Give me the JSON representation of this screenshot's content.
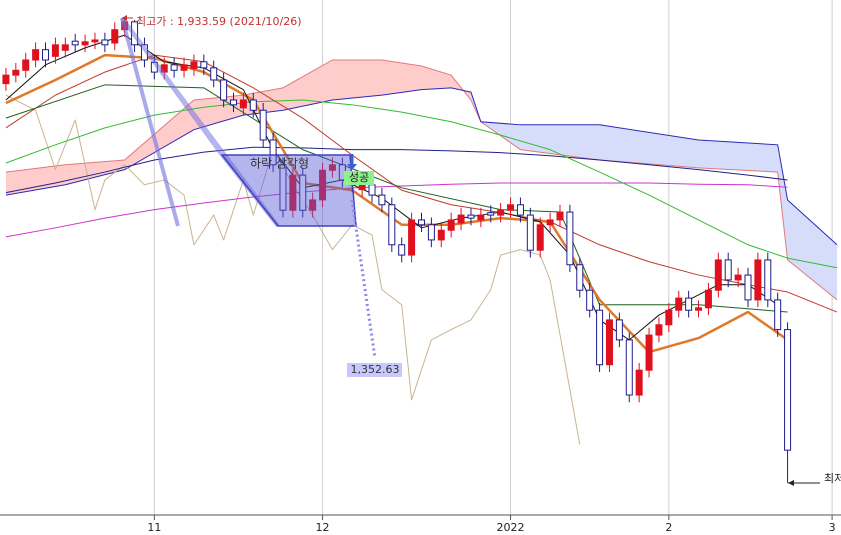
{
  "chart_data": {
    "type": "candlestick",
    "xlim": [
      -0.6,
      84.4
    ],
    "ylim": [
      1113,
      1963
    ],
    "grid": true,
    "xticks": [
      {
        "value": 15,
        "label": "11"
      },
      {
        "value": 32,
        "label": "12"
      },
      {
        "value": 51,
        "label": "2022"
      },
      {
        "value": 67,
        "label": "2"
      },
      {
        "value": 83.5,
        "label": "3"
      }
    ],
    "up_color": "#e0101e",
    "down_color": "#1c1c8c",
    "open": [
      1825,
      1839,
      1847,
      1864,
      1881,
      1870,
      1880,
      1895,
      1889,
      1894,
      1897,
      1892,
      1914,
      1927,
      1889,
      1860,
      1844,
      1856,
      1847,
      1850,
      1861,
      1851,
      1831,
      1798,
      1785,
      1798,
      1781,
      1732,
      1691,
      1616,
      1674,
      1616,
      1633,
      1682,
      1691,
      1666,
      1650,
      1658,
      1641,
      1625,
      1559,
      1542,
      1600,
      1592,
      1567,
      1583,
      1595,
      1608,
      1600,
      1612,
      1608,
      1616,
      1625,
      1608,
      1550,
      1592,
      1600,
      1613,
      1526,
      1484,
      1451,
      1361,
      1435,
      1402,
      1311,
      1352,
      1410,
      1427,
      1451,
      1471,
      1451,
      1455,
      1484,
      1534,
      1501,
      1509,
      1468,
      1534,
      1468,
      1419
    ],
    "high": [
      1851,
      1859,
      1876,
      1893,
      1893,
      1901,
      1901,
      1907,
      1906,
      1909,
      1909,
      1926,
      1934,
      1930,
      1901,
      1872,
      1868,
      1868,
      1868,
      1873,
      1873,
      1863,
      1843,
      1810,
      1810,
      1810,
      1793,
      1744,
      1703,
      1686,
      1686,
      1645,
      1694,
      1703,
      1703,
      1678,
      1670,
      1670,
      1653,
      1637,
      1571,
      1612,
      1612,
      1604,
      1595,
      1612,
      1620,
      1620,
      1620,
      1624,
      1628,
      1637,
      1637,
      1620,
      1604,
      1612,
      1625,
      1625,
      1538,
      1496,
      1463,
      1447,
      1447,
      1414,
      1364,
      1422,
      1439,
      1463,
      1483,
      1483,
      1467,
      1496,
      1546,
      1546,
      1521,
      1521,
      1546,
      1546,
      1480,
      1431
    ],
    "low": [
      1813,
      1827,
      1835,
      1852,
      1852,
      1858,
      1868,
      1877,
      1877,
      1882,
      1877,
      1880,
      1902,
      1877,
      1852,
      1832,
      1832,
      1835,
      1835,
      1838,
      1839,
      1819,
      1786,
      1778,
      1773,
      1769,
      1720,
      1679,
      1604,
      1604,
      1604,
      1604,
      1621,
      1670,
      1654,
      1646,
      1638,
      1629,
      1613,
      1547,
      1530,
      1530,
      1580,
      1555,
      1555,
      1571,
      1583,
      1591,
      1588,
      1596,
      1596,
      1604,
      1596,
      1538,
      1538,
      1580,
      1588,
      1514,
      1472,
      1439,
      1349,
      1349,
      1390,
      1299,
      1299,
      1340,
      1398,
      1415,
      1439,
      1439,
      1439,
      1443,
      1472,
      1489,
      1489,
      1456,
      1456,
      1456,
      1407,
      1166
    ],
    "close": [
      1839,
      1847,
      1864,
      1881,
      1864,
      1889,
      1889,
      1889,
      1894,
      1897,
      1889,
      1914,
      1927,
      1889,
      1864,
      1844,
      1856,
      1847,
      1856,
      1861,
      1851,
      1831,
      1798,
      1790,
      1798,
      1781,
      1732,
      1691,
      1616,
      1674,
      1616,
      1633,
      1682,
      1691,
      1666,
      1658,
      1658,
      1641,
      1625,
      1559,
      1542,
      1600,
      1592,
      1567,
      1583,
      1600,
      1608,
      1603,
      1608,
      1608,
      1616,
      1625,
      1608,
      1550,
      1592,
      1600,
      1613,
      1526,
      1484,
      1451,
      1361,
      1435,
      1402,
      1311,
      1352,
      1410,
      1427,
      1451,
      1471,
      1451,
      1455,
      1484,
      1534,
      1501,
      1509,
      1468,
      1534,
      1468,
      1419,
      1220
    ],
    "cloud": {
      "x": [
        0,
        6,
        12,
        19,
        24,
        28,
        33,
        38,
        42,
        45,
        47,
        48,
        52,
        60,
        70,
        78,
        79,
        84
      ],
      "a": [
        1679,
        1691,
        1699,
        1798,
        1806,
        1818,
        1864,
        1864,
        1854,
        1839,
        1798,
        1762,
        1716,
        1699,
        1686,
        1679,
        1534,
        1468
      ],
      "b": [
        1641,
        1658,
        1683,
        1749,
        1773,
        1781,
        1798,
        1806,
        1815,
        1818,
        1811,
        1762,
        1757,
        1757,
        1732,
        1724,
        1633,
        1559
      ],
      "a_color": "#ffcccc",
      "b_color": "#d6ddfb",
      "a_line": "#e07a7a",
      "b_line": "#2a2ab8"
    },
    "series": [
      {
        "color": "#c9b48f",
        "width": 1,
        "x": [
          0,
          3,
          5,
          7,
          9,
          10,
          12,
          14,
          16,
          18,
          19,
          21,
          22,
          24,
          25,
          27,
          29,
          31,
          33,
          35,
          37,
          38,
          40,
          41,
          43,
          45,
          47,
          49,
          50,
          52,
          54,
          55,
          57,
          58
        ],
        "values": [
          1806,
          1781,
          1683,
          1765,
          1617,
          1666,
          1691,
          1658,
          1666,
          1641,
          1559,
          1608,
          1567,
          1666,
          1608,
          1716,
          1658,
          1608,
          1551,
          1592,
          1575,
          1485,
          1460,
          1303,
          1402,
          1419,
          1435,
          1485,
          1542,
          1551,
          1542,
          1501,
          1320,
          1229
        ]
      },
      {
        "color": "#cc33cc",
        "width": 1,
        "x": [
          0,
          5,
          10,
          15,
          20,
          25,
          30,
          35,
          40,
          45,
          50,
          55,
          60,
          65,
          70,
          75,
          79
        ],
        "values": [
          1572,
          1587,
          1603,
          1617,
          1628,
          1638,
          1646,
          1653,
          1656,
          1659,
          1661,
          1661,
          1661,
          1661,
          1659,
          1658,
          1654
        ]
      },
      {
        "color": "#22228a",
        "width": 1,
        "x": [
          0,
          5,
          10,
          15,
          20,
          25,
          30,
          35,
          40,
          45,
          50,
          55,
          60,
          65,
          70,
          75,
          79
        ],
        "values": [
          1645,
          1661,
          1679,
          1699,
          1712,
          1720,
          1719,
          1716,
          1716,
          1714,
          1711,
          1706,
          1699,
          1691,
          1683,
          1674,
          1666
        ]
      },
      {
        "color": "#33bb33",
        "width": 1,
        "x": [
          0,
          5,
          10,
          15,
          20,
          25,
          30,
          35,
          40,
          45,
          50,
          55,
          60,
          65,
          70,
          75,
          79,
          84
        ],
        "values": [
          1694,
          1724,
          1752,
          1773,
          1786,
          1795,
          1798,
          1790,
          1778,
          1762,
          1740,
          1716,
          1679,
          1641,
          1600,
          1559,
          1537,
          1521
        ]
      },
      {
        "color": "#c0392b",
        "width": 1,
        "x": [
          0,
          5,
          10,
          15,
          20,
          25,
          30,
          35,
          40,
          45,
          50,
          55,
          60,
          65,
          70,
          75,
          79,
          84
        ],
        "values": [
          1752,
          1806,
          1844,
          1872,
          1861,
          1818,
          1768,
          1707,
          1649,
          1625,
          1612,
          1597,
          1559,
          1531,
          1509,
          1493,
          1481,
          1448
        ]
      },
      {
        "color": "#1f5f1f",
        "width": 1,
        "x": [
          0,
          10,
          20,
          30,
          40,
          50,
          56,
          60,
          64,
          70,
          79
        ],
        "values": [
          1768,
          1823,
          1818,
          1716,
          1653,
          1617,
          1613,
          1460,
          1460,
          1460,
          1448
        ]
      },
      {
        "color": "#e0782a",
        "width": 2.5,
        "x": [
          0,
          5,
          10,
          15,
          20,
          25,
          30,
          35,
          40,
          45,
          50,
          55,
          60,
          65,
          70,
          75,
          79
        ],
        "values": [
          1793,
          1831,
          1872,
          1867,
          1844,
          1798,
          1661,
          1649,
          1592,
          1592,
          1603,
          1597,
          1468,
          1382,
          1405,
          1448,
          1402
        ]
      },
      {
        "color": "#111111",
        "width": 1,
        "x": [
          0,
          4,
          8,
          12,
          16,
          20,
          24,
          27,
          30,
          34,
          38,
          42,
          46,
          50,
          54,
          57,
          60,
          63,
          66,
          69,
          72,
          75,
          78
        ],
        "values": [
          1798,
          1856,
          1884,
          1905,
          1861,
          1851,
          1815,
          1716,
          1653,
          1666,
          1636,
          1587,
          1603,
          1613,
          1597,
          1542,
          1435,
          1402,
          1443,
          1468,
          1493,
          1493,
          1460
        ]
      }
    ],
    "annotations": [
      "최고가 : 1,933.59 (2021/10/26)",
      "하락 삼각형",
      "성공",
      "1,352.63",
      "최저가"
    ]
  }
}
